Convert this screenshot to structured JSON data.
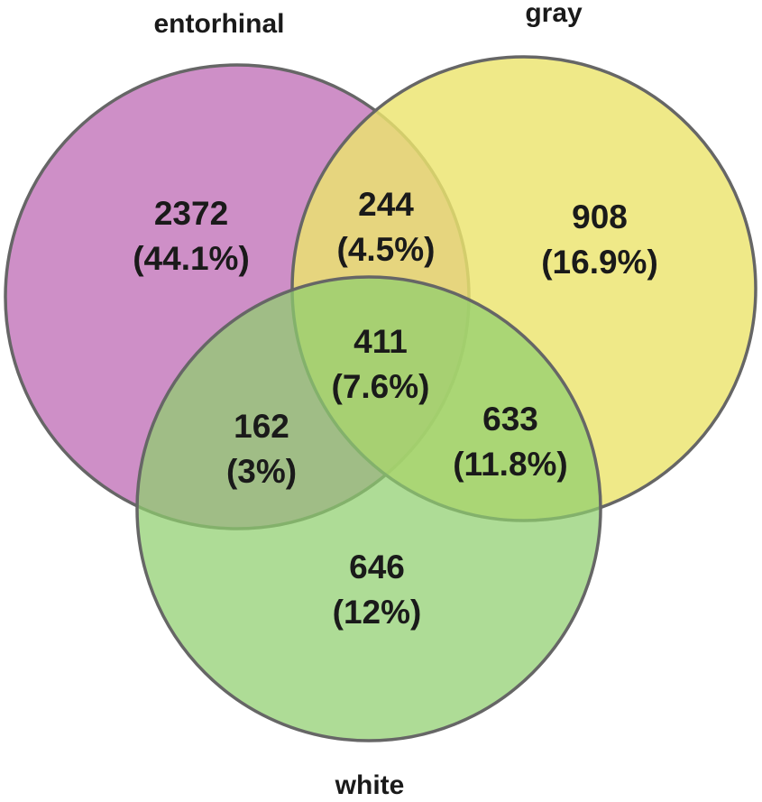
{
  "sets": {
    "entorhinal": {
      "label": "entorhinal",
      "color": "#c77fbf"
    },
    "gray": {
      "label": "gray",
      "color": "#ece46e"
    },
    "white": {
      "label": "white",
      "color": "#8fcf6e"
    }
  },
  "regions": {
    "entorhinal_only": {
      "count": "2372",
      "percent": "(44.1%)"
    },
    "gray_only": {
      "count": "908",
      "percent": "(16.9%)"
    },
    "white_only": {
      "count": "646",
      "percent": "(12%)"
    },
    "entorhinal_gray": {
      "count": "244",
      "percent": "(4.5%)"
    },
    "entorhinal_white": {
      "count": "162",
      "percent": "(3%)"
    },
    "gray_white": {
      "count": "633",
      "percent": "(11.8%)"
    },
    "all_three": {
      "count": "411",
      "percent": "(7.6%)"
    }
  }
}
